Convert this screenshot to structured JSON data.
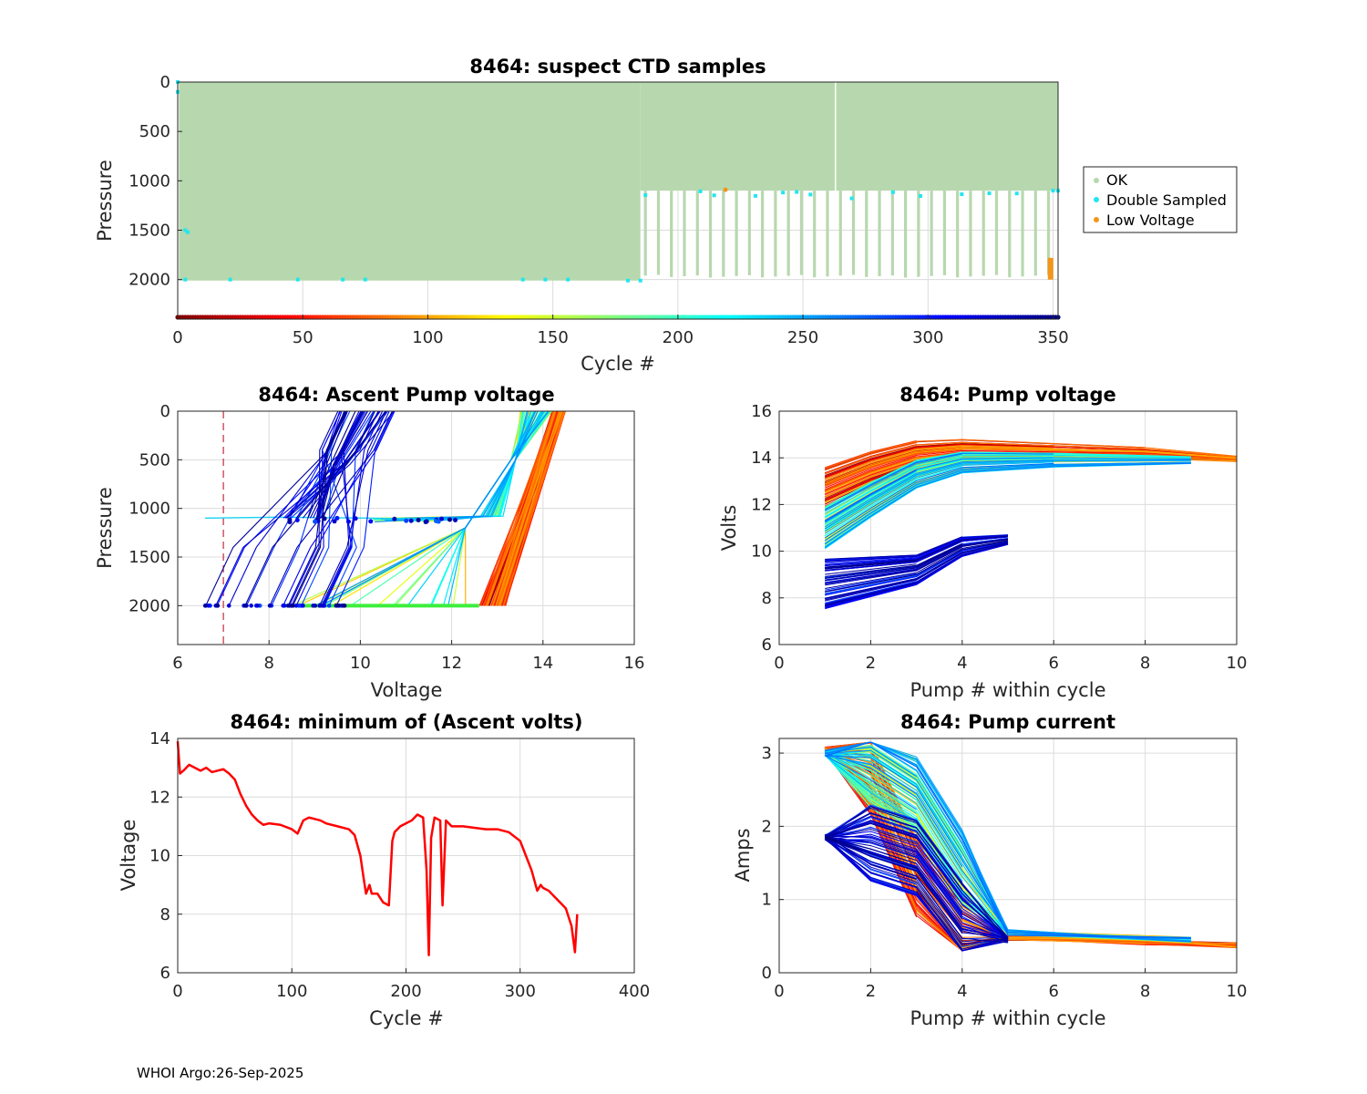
{
  "footer": "WHOI Argo:26-Sep-2025",
  "chart_data": [
    {
      "id": "p1",
      "type": "scatter",
      "title": "8464: suspect CTD samples",
      "xlabel": "Cycle #",
      "ylabel": "Pressure",
      "xlim": [
        0,
        352
      ],
      "ylim": [
        0,
        2400
      ],
      "y_reversed": true,
      "xticks": [
        "0",
        "50",
        "100",
        "150",
        "200",
        "250",
        "300",
        "350"
      ],
      "yticks": [
        "0",
        "500",
        "1000",
        "1500",
        "2000"
      ],
      "legend": {
        "location": "right",
        "entries": [
          {
            "label": "OK",
            "color": "#b7d8ae"
          },
          {
            "label": "Double Sampled",
            "color": "#22e6ee"
          },
          {
            "label": "Low Voltage",
            "color": "#f39619"
          }
        ]
      },
      "profile_depth_segments": [
        {
          "cycle_range": [
            0,
            185
          ],
          "max_pressure": 2010
        },
        {
          "cycle_range": [
            185,
            352
          ],
          "max_pressure": 1950,
          "sparse_pressure_range": [
            1100,
            1950
          ]
        }
      ],
      "low_voltage_points": [
        {
          "cycle": 219,
          "pressure": 1090
        },
        {
          "cycle": 349,
          "pressure_range": [
            1780,
            2000
          ]
        }
      ],
      "colorbar_cycles": [
        0,
        352
      ]
    },
    {
      "id": "p2",
      "type": "line",
      "title": "8464: Ascent Pump voltage",
      "xlabel": "Voltage",
      "ylabel": "Pressure",
      "xlim": [
        6,
        16
      ],
      "ylim": [
        0,
        2400
      ],
      "y_reversed": true,
      "xticks": [
        "6",
        "8",
        "10",
        "12",
        "14",
        "16"
      ],
      "yticks": [
        "0",
        "500",
        "1000",
        "1500",
        "2000"
      ],
      "reference_line_voltage": 7,
      "color_by": "cycle",
      "series_groups": [
        {
          "cycles": "early",
          "voltage_at_2000": [
            12.6,
            13.2
          ],
          "voltage_at_0": [
            14.2,
            14.5
          ]
        },
        {
          "cycles": "middle",
          "voltage_at_2000": [
            8.3,
            12.4
          ],
          "voltage_at_0": [
            13.5,
            14.2
          ],
          "plateau_pressure": 1100
        },
        {
          "cycles": "late",
          "voltage_at_2000": [
            6.6,
            9.8
          ],
          "voltage_at_0": [
            9.5,
            10.8
          ]
        }
      ]
    },
    {
      "id": "p3",
      "type": "line",
      "title": "8464: Pump voltage",
      "xlabel": "Pump # within cycle",
      "ylabel": "Volts",
      "xlim": [
        0,
        10
      ],
      "ylim": [
        6,
        16
      ],
      "xticks": [
        "0",
        "2",
        "4",
        "6",
        "8",
        "10"
      ],
      "yticks": [
        "6",
        "8",
        "10",
        "12",
        "14",
        "16"
      ],
      "color_by": "cycle",
      "series_groups": [
        {
          "cycles": "early",
          "pump": [
            1,
            2,
            3,
            4,
            6,
            8,
            10
          ],
          "volts": [
            12.7,
            13.5,
            14.1,
            14.3,
            14.25,
            14.2,
            13.95
          ]
        },
        {
          "cycles": "middle",
          "pump": [
            1,
            2,
            3,
            4,
            6,
            9
          ],
          "volts": [
            11.0,
            12.2,
            13.3,
            13.8,
            13.9,
            13.9
          ]
        },
        {
          "cycles": "late",
          "pump": [
            1,
            2,
            3,
            4,
            5
          ],
          "volts": [
            8.6,
            8.9,
            9.2,
            10.2,
            10.5
          ]
        }
      ]
    },
    {
      "id": "p4",
      "type": "line",
      "title": "8464: minimum of (Ascent volts)",
      "xlabel": "Cycle #",
      "ylabel": "Voltage",
      "xlim": [
        0,
        400
      ],
      "ylim": [
        6,
        14
      ],
      "xticks": [
        "0",
        "100",
        "200",
        "300",
        "400"
      ],
      "yticks": [
        "6",
        "8",
        "10",
        "12",
        "14"
      ],
      "series": [
        {
          "name": "minimum ascent volts",
          "color": "#ff0000",
          "x": [
            0,
            2,
            5,
            10,
            15,
            20,
            25,
            30,
            35,
            40,
            45,
            50,
            55,
            60,
            65,
            70,
            75,
            80,
            90,
            100,
            105,
            110,
            115,
            120,
            125,
            130,
            140,
            150,
            155,
            160,
            163,
            165,
            168,
            170,
            175,
            180,
            185,
            188,
            190,
            195,
            200,
            205,
            210,
            215,
            218,
            220,
            222,
            225,
            230,
            232,
            235,
            240,
            250,
            260,
            270,
            280,
            290,
            300,
            305,
            310,
            315,
            318,
            320,
            325,
            330,
            335,
            340,
            345,
            348,
            350
          ],
          "y": [
            13.9,
            12.8,
            12.9,
            13.1,
            13.0,
            12.9,
            13.0,
            12.85,
            12.9,
            12.95,
            12.8,
            12.6,
            12.1,
            11.7,
            11.4,
            11.2,
            11.05,
            11.1,
            11.05,
            10.9,
            10.75,
            11.2,
            11.3,
            11.25,
            11.2,
            11.1,
            11.0,
            10.9,
            10.7,
            10.0,
            9.2,
            8.7,
            9.0,
            8.7,
            8.7,
            8.4,
            8.3,
            10.5,
            10.8,
            11.0,
            11.1,
            11.2,
            11.4,
            11.3,
            9.5,
            6.6,
            10.6,
            11.3,
            11.2,
            8.3,
            11.2,
            11.0,
            11.0,
            10.95,
            10.9,
            10.9,
            10.8,
            10.5,
            10.0,
            9.5,
            8.8,
            9.0,
            8.9,
            8.8,
            8.6,
            8.4,
            8.2,
            7.6,
            6.7,
            8.0
          ]
        }
      ]
    },
    {
      "id": "p5",
      "type": "line",
      "title": "8464: Pump current",
      "xlabel": "Pump # within cycle",
      "ylabel": "Amps",
      "xlim": [
        0,
        10
      ],
      "ylim": [
        0,
        3.2
      ],
      "xticks": [
        "0",
        "2",
        "4",
        "6",
        "8",
        "10"
      ],
      "yticks": [
        "0",
        "1",
        "2",
        "3"
      ],
      "color_by": "cycle",
      "series_groups": [
        {
          "cycles": "early",
          "pump": [
            1,
            2,
            3,
            4,
            5,
            8,
            10
          ],
          "amps": [
            3.05,
            2.7,
            1.3,
            0.55,
            0.48,
            0.42,
            0.38
          ]
        },
        {
          "cycles": "middle",
          "pump": [
            1,
            2,
            3,
            4,
            5,
            9
          ],
          "amps": [
            3.0,
            2.8,
            2.4,
            1.4,
            0.55,
            0.45
          ]
        },
        {
          "cycles": "late",
          "pump": [
            1,
            2,
            3,
            4,
            5
          ],
          "amps": [
            1.85,
            1.75,
            1.55,
            0.7,
            0.45
          ]
        }
      ]
    }
  ]
}
